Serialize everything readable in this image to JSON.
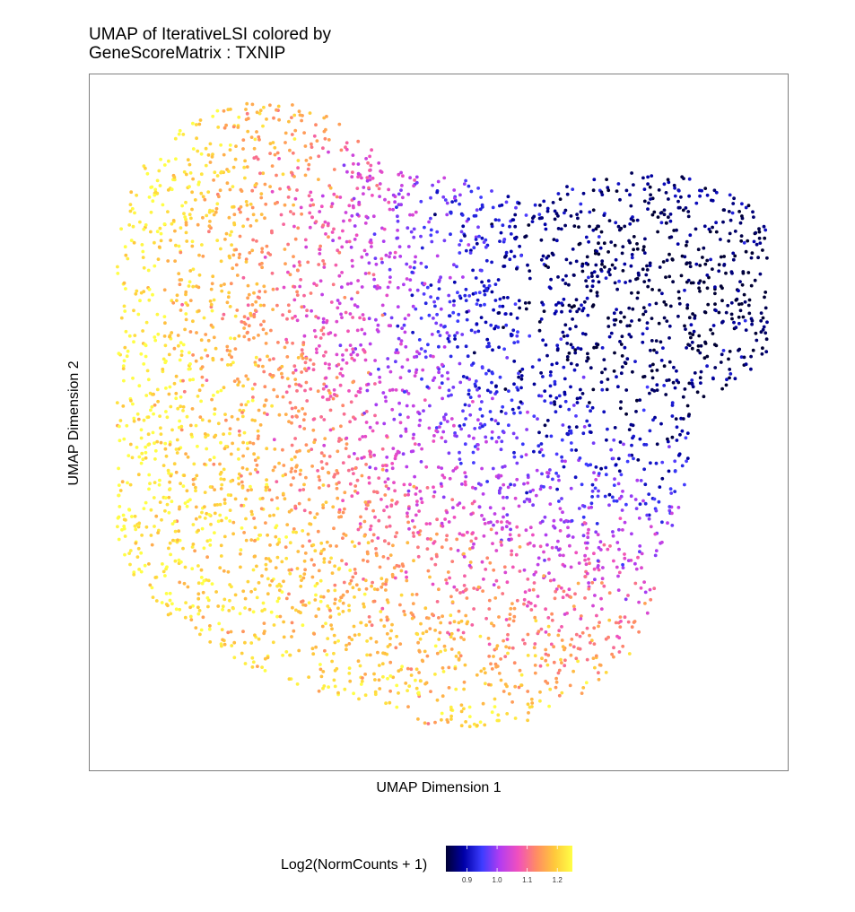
{
  "chart_data": {
    "type": "scatter",
    "title_line1": "UMAP of IterativeLSI colored by",
    "title_line2": "GeneScoreMatrix : TXNIP",
    "xlabel": "UMAP Dimension 1",
    "ylabel": "UMAP Dimension 2",
    "xticks_shown": false,
    "yticks_shown": false,
    "grid": false,
    "legend": {
      "title": "Log2(NormCounts + 1)",
      "placement": "bottom",
      "type": "colorbar",
      "range": [
        0.83,
        1.25
      ],
      "ticks": [
        {
          "value": 0.9,
          "label": "0.9"
        },
        {
          "value": 1.0,
          "label": "1.0"
        },
        {
          "value": 1.1,
          "label": "1.1"
        },
        {
          "value": 1.2,
          "label": "1.2"
        }
      ],
      "colors": [
        "#000033",
        "#0000A8",
        "#3C3CFF",
        "#B43CF0",
        "#F050BE",
        "#FF8C64",
        "#FFC83C",
        "#FFFF46"
      ]
    },
    "axis_ranges": {
      "x": [
        0,
        1
      ],
      "y": [
        0,
        1
      ]
    },
    "point_count": 4200,
    "gradient_summary": "low values (dark blue) at upper-right lobe, high values (yellow) at upper-left",
    "clusters": [
      {
        "x_range": [
          0.05,
          0.82
        ],
        "y_range": [
          0.05,
          0.95
        ]
      }
    ]
  }
}
